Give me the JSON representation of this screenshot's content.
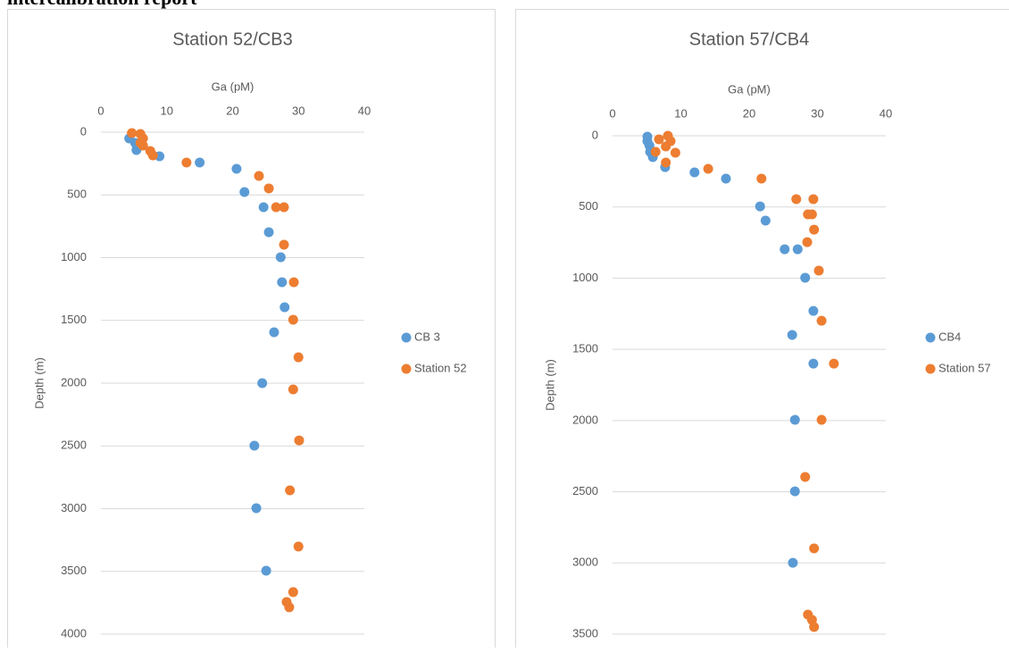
{
  "header": "intercalibration report",
  "chart_data": [
    {
      "type": "scatter",
      "title": "Station 52/CB3",
      "x_label": "Ga (pM)",
      "y_label": "Depth (m)",
      "xlim": [
        0,
        40
      ],
      "xticks": [
        0,
        10,
        20,
        30,
        40
      ],
      "ylim": [
        0,
        4000
      ],
      "yticks": [
        0,
        500,
        1000,
        1500,
        2000,
        2500,
        3000,
        3500,
        4000
      ],
      "y_inverted": true,
      "x_axis_position": "top",
      "grid": true,
      "legend": "right",
      "series": [
        {
          "name": "CB 3",
          "color": "#5b9bd5",
          "x": [
            4.3,
            5.2,
            5.4,
            8.9,
            15.0,
            20.6,
            21.8,
            24.7,
            25.5,
            27.3,
            27.5,
            27.9,
            26.3,
            24.5,
            23.3,
            23.6,
            25.1
          ],
          "values": [
            50,
            85,
            142,
            192,
            242,
            292,
            477,
            598,
            797,
            996,
            1196,
            1395,
            1594,
            2000,
            2498,
            2996,
            3495
          ]
        },
        {
          "name": "Station 52",
          "color": "#ed7d31",
          "x": [
            4.7,
            6.0,
            6.4,
            6.0,
            6.4,
            7.5,
            7.9,
            13.0,
            24.0,
            25.5,
            26.6,
            27.8,
            27.8,
            29.3,
            29.2,
            30.0,
            29.2,
            30.1,
            28.7,
            30.0,
            29.2,
            28.2,
            28.6
          ],
          "values": [
            7,
            14,
            50,
            85,
            107,
            150,
            185,
            242,
            349,
            448,
            598,
            598,
            897,
            1196,
            1495,
            1794,
            2050,
            2456,
            2854,
            3302,
            3665,
            3744,
            3786
          ]
        }
      ]
    },
    {
      "type": "scatter",
      "title": "Station 57/CB4",
      "x_label": "Ga (pM)",
      "y_label": "Depth (m)",
      "xlim": [
        0,
        40
      ],
      "xticks": [
        0,
        10,
        20,
        30,
        40
      ],
      "ylim": [
        0,
        3500
      ],
      "yticks": [
        0,
        500,
        1000,
        1500,
        2000,
        2500,
        3000,
        3500
      ],
      "y_inverted": true,
      "x_axis_position": "top",
      "grid": true,
      "legend": "right",
      "series": [
        {
          "name": "CB4",
          "color": "#5b9bd5",
          "x": [
            5.1,
            5.1,
            5.4,
            5.5,
            5.9,
            7.7,
            12.0,
            16.6,
            21.6,
            22.4,
            25.2,
            27.1,
            28.2,
            29.4,
            26.3,
            29.4,
            26.7,
            26.7,
            26.4
          ],
          "values": [
            6,
            38,
            69,
            113,
            150,
            220,
            257,
            301,
            496,
            596,
            797,
            797,
            997,
            1230,
            1399,
            1600,
            1995,
            2497,
            2999
          ]
        },
        {
          "name": "Station 57",
          "color": "#ed7d31",
          "x": [
            8.1,
            6.8,
            8.5,
            7.8,
            6.3,
            9.2,
            7.8,
            14.0,
            21.8,
            26.9,
            29.4,
            28.6,
            29.2,
            29.5,
            28.5,
            30.2,
            30.6,
            32.4,
            30.6,
            28.2,
            29.5,
            28.6,
            29.2,
            29.5
          ],
          "values": [
            0,
            25,
            38,
            75,
            113,
            119,
            188,
            232,
            301,
            445,
            445,
            552,
            552,
            659,
            747,
            947,
            1299,
            1600,
            1995,
            2396,
            2898,
            3363,
            3400,
            3450
          ]
        }
      ]
    }
  ]
}
